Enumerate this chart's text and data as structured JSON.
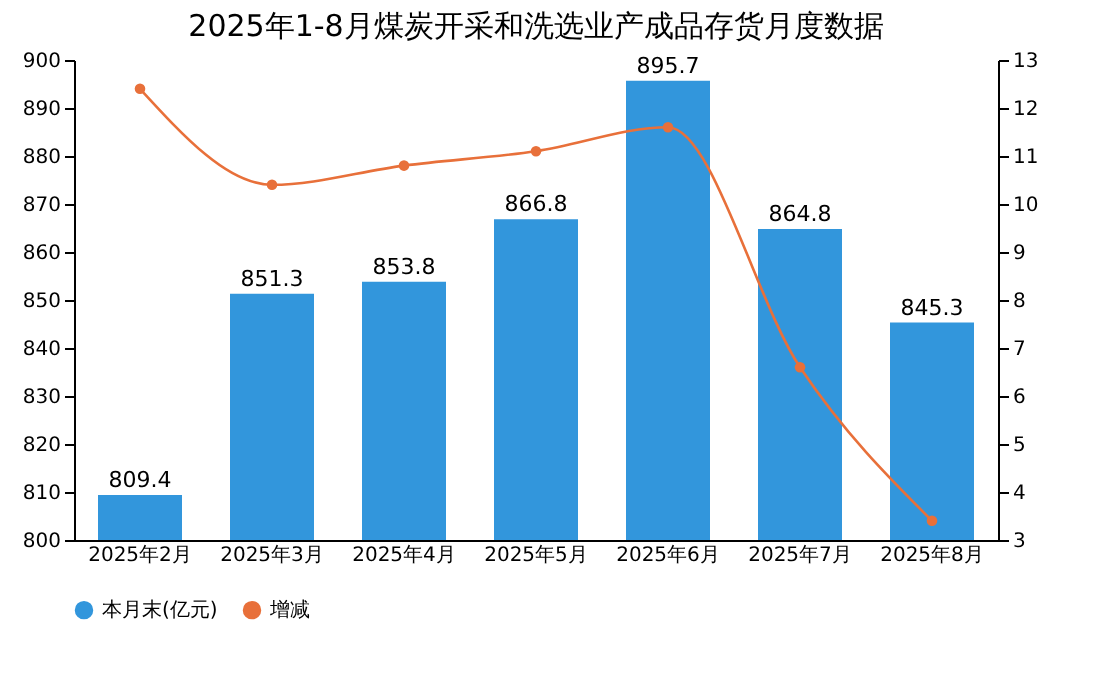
{
  "chart_data": {
    "type": "bar",
    "title": "2025年1-8月煤炭开采和洗选业产成品存货月度数据",
    "categories": [
      "2025年2月",
      "2025年3月",
      "2025年4月",
      "2025年5月",
      "2025年6月",
      "2025年7月",
      "2025年8月"
    ],
    "series": [
      {
        "name": "本月末(亿元)",
        "color": "#3296dc",
        "values": [
          809.4,
          851.3,
          853.8,
          866.8,
          895.7,
          864.8,
          845.3
        ],
        "value_labels": [
          "809.4",
          "851.3",
          "853.8",
          "866.8",
          "895.7",
          "864.8",
          "845.3"
        ]
      },
      {
        "name": "增减",
        "type": "line",
        "axis": "y2",
        "color": "#e8703a",
        "marker": "circle",
        "values": [
          12.4,
          10.4,
          10.8,
          11.1,
          11.6,
          6.6,
          3.4
        ]
      }
    ],
    "ylim": [
      800,
      900
    ],
    "yticks": [
      800,
      810,
      820,
      830,
      840,
      850,
      860,
      870,
      880,
      890,
      900
    ],
    "y2lim": [
      3,
      13
    ],
    "y2ticks": [
      3,
      4,
      5,
      6,
      7,
      8,
      9,
      10,
      11,
      12,
      13
    ],
    "legend": "bottom left"
  }
}
